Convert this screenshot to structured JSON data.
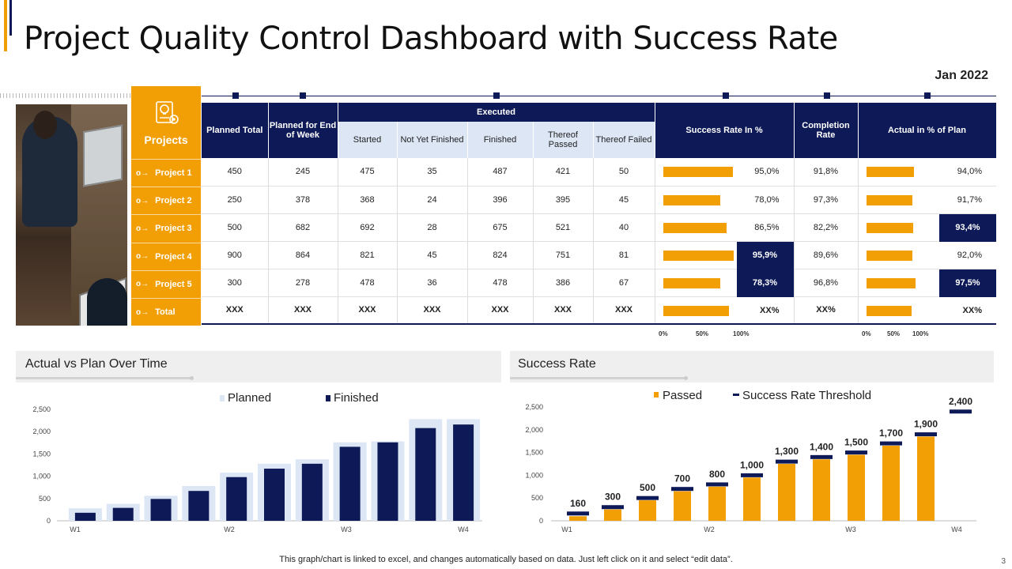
{
  "title": "Project Quality Control Dashboard with Success Rate",
  "date": "Jan 2022",
  "projects_header": "Projects",
  "table": {
    "headers": {
      "planned_total": "Planned Total",
      "planned_week": "Planned for End of Week",
      "executed": "Executed",
      "started": "Started",
      "not_finished": "Not Yet Finished",
      "finished": "Finished",
      "passed": "Thereof Passed",
      "failed": "Thereof Failed",
      "success_rate": "Success Rate In %",
      "completion": "Completion Rate",
      "actual": "Actual in % of Plan"
    },
    "rows": [
      {
        "name": "Project 1",
        "planned_total": "450",
        "planned_week": "245",
        "started": "475",
        "not_finished": "35",
        "finished": "487",
        "passed": "421",
        "failed": "50",
        "success_rate": "95,0%",
        "success_val": 95.0,
        "success_hi": false,
        "completion": "91,8%",
        "actual": "94,0%",
        "actual_val": 94.0,
        "actual_hi": false
      },
      {
        "name": "Project 2",
        "planned_total": "250",
        "planned_week": "378",
        "started": "368",
        "not_finished": "24",
        "finished": "396",
        "passed": "395",
        "failed": "45",
        "success_rate": "78,0%",
        "success_val": 78.0,
        "success_hi": false,
        "completion": "97,3%",
        "actual": "91,7%",
        "actual_val": 91.7,
        "actual_hi": false
      },
      {
        "name": "Project 3",
        "planned_total": "500",
        "planned_week": "682",
        "started": "692",
        "not_finished": "28",
        "finished": "675",
        "passed": "521",
        "failed": "40",
        "success_rate": "86,5%",
        "success_val": 86.5,
        "success_hi": false,
        "completion": "82,2%",
        "actual": "93,4%",
        "actual_val": 93.4,
        "actual_hi": true
      },
      {
        "name": "Project 4",
        "planned_total": "900",
        "planned_week": "864",
        "started": "821",
        "not_finished": "45",
        "finished": "824",
        "passed": "751",
        "failed": "81",
        "success_rate": "95,9%",
        "success_val": 95.9,
        "success_hi": true,
        "completion": "89,6%",
        "actual": "92,0%",
        "actual_val": 92.0,
        "actual_hi": false
      },
      {
        "name": "Project 5",
        "planned_total": "300",
        "planned_week": "278",
        "started": "478",
        "not_finished": "36",
        "finished": "478",
        "passed": "386",
        "failed": "67",
        "success_rate": "78,3%",
        "success_val": 78.3,
        "success_hi": true,
        "completion": "96,8%",
        "actual": "97,5%",
        "actual_val": 97.5,
        "actual_hi": true
      },
      {
        "name": "Total",
        "planned_total": "XXX",
        "planned_week": "XXX",
        "started": "XXX",
        "not_finished": "XXX",
        "finished": "XXX",
        "passed": "XXX",
        "failed": "XXX",
        "success_rate": "XX%",
        "success_val": 90.0,
        "success_hi": false,
        "completion": "XX%",
        "actual": "XX%",
        "actual_val": 90.0,
        "actual_hi": false
      }
    ],
    "axis_labels": [
      "0%",
      "50%",
      "100%"
    ]
  },
  "chart_data": [
    {
      "type": "bar",
      "title": "Actual vs Plan Over Time",
      "legend": [
        "Planned",
        "Finished"
      ],
      "x_ticks": [
        "W1",
        "W2",
        "W3",
        "W4"
      ],
      "y_ticks": [
        "0",
        "500",
        "1,000",
        "1,500",
        "2,000",
        "2,500"
      ],
      "ylim": [
        0,
        2500
      ],
      "series": [
        {
          "name": "Planned",
          "values": [
            280,
            380,
            560,
            780,
            1080,
            1280,
            1380,
            1760,
            1780,
            2280,
            2280
          ]
        },
        {
          "name": "Finished",
          "values": [
            180,
            290,
            490,
            670,
            980,
            1170,
            1280,
            1660,
            1760,
            2080,
            2160
          ]
        }
      ],
      "colors": {
        "Planned": "#DCE6F5",
        "Finished": "#0D1A57"
      }
    },
    {
      "type": "bar",
      "title": "Success Rate",
      "legend": [
        "Passed",
        "Success Rate Threshold"
      ],
      "x_ticks": [
        "W1",
        "W2",
        "W3",
        "W4"
      ],
      "y_ticks": [
        "0",
        "500",
        "1,000",
        "1,500",
        "2,000",
        "2,500"
      ],
      "ylim": [
        0,
        2500
      ],
      "series": [
        {
          "name": "Passed",
          "values": [
            100,
            250,
            450,
            650,
            750,
            950,
            1250,
            1350,
            1450,
            1650,
            1850,
            null
          ]
        },
        {
          "name": "Success Rate Threshold",
          "values": [
            160,
            300,
            500,
            700,
            800,
            1000,
            1300,
            1400,
            1500,
            1700,
            1900,
            2400
          ]
        }
      ],
      "data_labels": [
        "160",
        "300",
        "500",
        "700",
        "800",
        "1,000",
        "1,300",
        "1,400",
        "1,500",
        "1,700",
        "1,900",
        "2,400"
      ],
      "colors": {
        "Passed": "#F29F05",
        "Success Rate Threshold": "#0D1A57"
      }
    }
  ],
  "footer": "This graph/chart is linked to excel,  and changes automatically based on data. Just left click on it and select “edit data”.",
  "page_number": "3",
  "colors": {
    "navy": "#0D1A57",
    "orange": "#F29F05",
    "light_blue": "#DCE6F5"
  }
}
